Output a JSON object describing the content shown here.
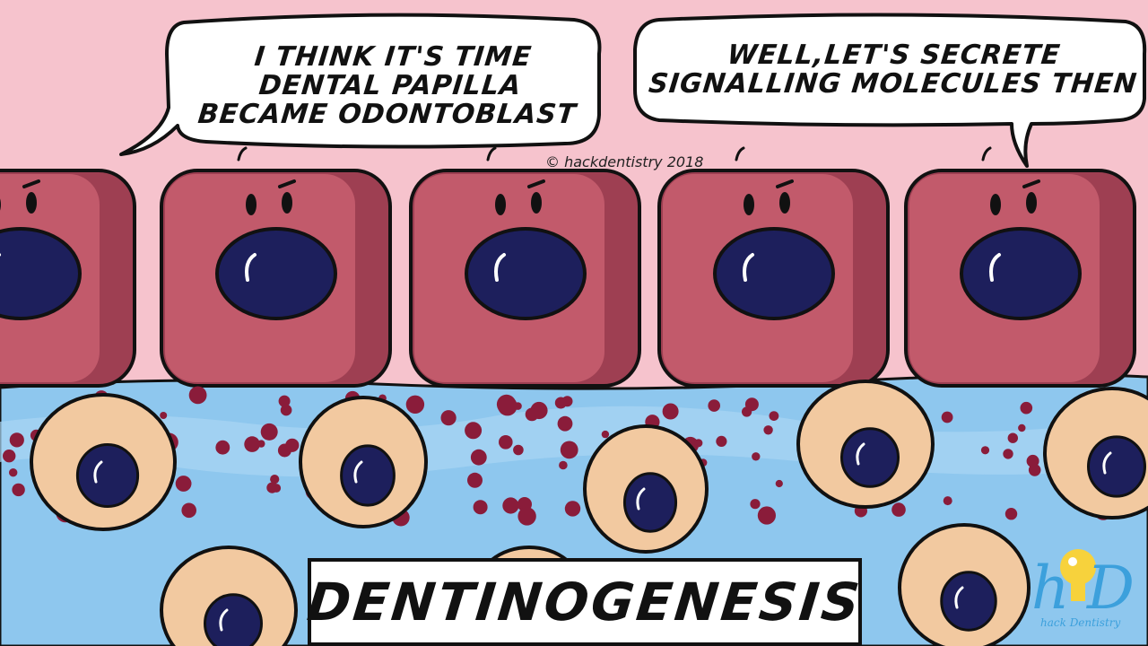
{
  "speech_left": {
    "lines": [
      "I THINK IT'S TIME",
      "DENTAL PAPILLA",
      "BECAME ODONTOBLAST"
    ]
  },
  "speech_right": {
    "lines": [
      "WELL,LET'S SECRETE",
      "SIGNALLING MOLECULES THEN"
    ]
  },
  "copyright": "© hackdentistry 2018",
  "title": "DENTINOGENESIS",
  "logo": {
    "letters": "hD",
    "caption": "hack Dentistry"
  },
  "colors": {
    "background_pink": "#f6c3cd",
    "epithelial_cell": "#c25a6b",
    "epithelial_cell_shadow": "#9e3f52",
    "nucleus": "#1d1f5c",
    "mesenchyme_blue": "#8ec7ee",
    "papilla_cell": "#f2c9a0",
    "signal_dots": "#8a1c3a",
    "logo_blue": "#3ca0dc",
    "logo_bulb": "#f7d23c"
  }
}
